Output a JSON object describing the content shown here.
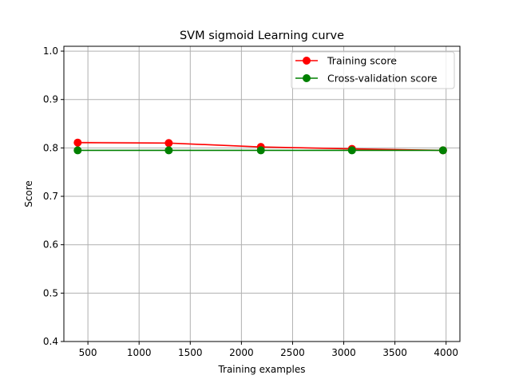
{
  "chart_data": {
    "type": "line",
    "title": "SVM sigmoid Learning curve",
    "xlabel": "Training examples",
    "ylabel": "Score",
    "xlim": [
      265,
      4135
    ],
    "ylim": [
      0.4,
      1.01
    ],
    "x_ticks": [
      500,
      1000,
      1500,
      2000,
      2500,
      3000,
      3500,
      4000
    ],
    "y_ticks": [
      0.4,
      0.5,
      0.6,
      0.7,
      0.8,
      0.9,
      1.0
    ],
    "x_tick_labels": [
      "500",
      "1000",
      "1500",
      "2000",
      "2500",
      "3000",
      "3500",
      "4000"
    ],
    "y_tick_labels": [
      "0.4",
      "0.5",
      "0.6",
      "0.7",
      "0.8",
      "0.9",
      "1.0"
    ],
    "grid": true,
    "legend_position": "top-right",
    "x": [
      400,
      1290,
      2190,
      3080,
      3970
    ],
    "series": [
      {
        "name": "Training score",
        "color": "#ff0000",
        "values": [
          0.811,
          0.81,
          0.802,
          0.798,
          0.795
        ],
        "band": [
          [
            0.807,
            0.815
          ],
          [
            0.809,
            0.811
          ],
          [
            0.801,
            0.803
          ],
          [
            0.797,
            0.799
          ],
          [
            0.794,
            0.796
          ]
        ]
      },
      {
        "name": "Cross-validation score",
        "color": "#008000",
        "values": [
          0.795,
          0.795,
          0.795,
          0.795,
          0.795
        ],
        "band": [
          [
            0.794,
            0.796
          ],
          [
            0.794,
            0.796
          ],
          [
            0.794,
            0.796
          ],
          [
            0.794,
            0.796
          ],
          [
            0.794,
            0.796
          ]
        ]
      }
    ]
  }
}
